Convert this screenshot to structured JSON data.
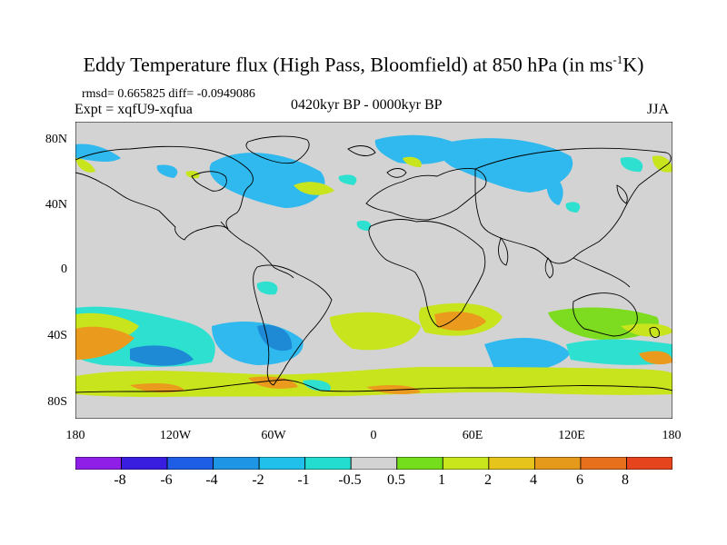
{
  "title": {
    "main": "Eddy Temperature flux (High Pass, Bloomfield) at 850 hPa (in ms",
    "sup": "-1",
    "end": "K)"
  },
  "stats": "rmsd= 0.665825 diff= -0.0949086",
  "expt": "Expt = xqfU9-xqfua",
  "period": "0420kyr BP - 0000kyr BP",
  "season": "JJA",
  "map": {
    "background_color": "#d3d3d3",
    "coastline_color": "#000000",
    "lat_ticks": [
      "80N",
      "40N",
      "0",
      "40S",
      "80S"
    ],
    "lon_ticks": [
      "180",
      "120W",
      "60W",
      "0",
      "60E",
      "120E",
      "180"
    ]
  },
  "colorbar": {
    "labels": [
      "-8",
      "-6",
      "-4",
      "-2",
      "-1",
      "-0.5",
      "0.5",
      "1",
      "2",
      "4",
      "6",
      "8"
    ],
    "colors": [
      "#8f1fe6",
      "#3a1ee0",
      "#1e5ee6",
      "#1f95e6",
      "#20c0ea",
      "#22ddd0",
      "#d3d3d3",
      "#74dd1c",
      "#c9e61c",
      "#e6c41c",
      "#e69a1c",
      "#e6701c",
      "#e6441c"
    ]
  },
  "shade_colors": {
    "neg_strong": "#1e8ad6",
    "neg": "#2fb9ee",
    "neg_weak": "#2ee0d0",
    "pos_weak": "#7ddc1f",
    "pos": "#c8e41c",
    "pos_strong": "#e8b817",
    "pos_vstrong": "#ea9a1c"
  }
}
